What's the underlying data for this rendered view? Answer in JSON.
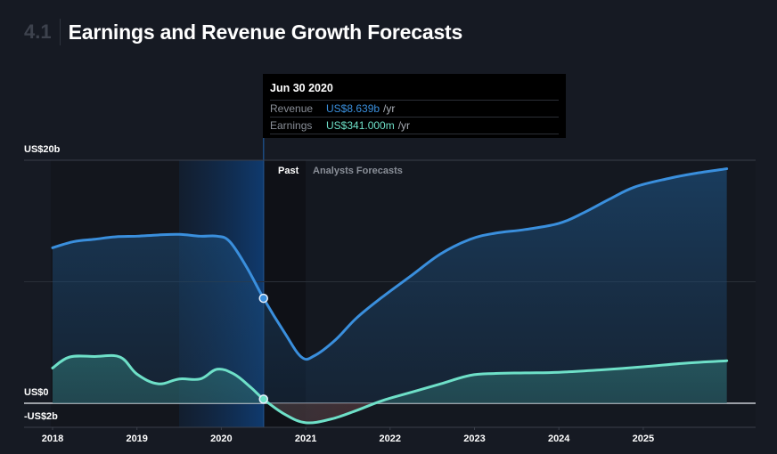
{
  "header": {
    "section_number": "4.1",
    "title": "Earnings and Revenue Growth Forecasts"
  },
  "tooltip": {
    "date": "Jun 30 2020",
    "rows": [
      {
        "label": "Revenue",
        "value": "US$8.639b",
        "unit": "/yr"
      },
      {
        "label": "Earnings",
        "value": "US$341.000m",
        "unit": "/yr"
      }
    ]
  },
  "regions": {
    "past_label": "Past",
    "forecast_label": "Analysts Forecasts"
  },
  "colors": {
    "background": "#161a23",
    "revenue": "#3a8fdd",
    "earnings": "#6ee0c8",
    "highlight": "#0f3a6a",
    "negative": "#5a1f24"
  },
  "chart_data": {
    "type": "area",
    "title": "Earnings and Revenue Growth Forecasts",
    "xlabel": "",
    "ylabel": "",
    "ylim": [
      -2,
      20
    ],
    "xlim": [
      2017.6,
      2026.5
    ],
    "y_tick_labels": [
      {
        "value": 20,
        "label": "US$20b"
      },
      {
        "value": 0,
        "label": "US$0"
      },
      {
        "value": -2,
        "label": "-US$2b"
      }
    ],
    "gridlines_y": [
      20,
      10,
      0
    ],
    "x_ticks": [
      2018,
      2019,
      2020,
      2021,
      2022,
      2023,
      2024,
      2025
    ],
    "x_tick_labels": [
      "2018",
      "2019",
      "2020",
      "2021",
      "2022",
      "2023",
      "2024",
      "2025"
    ],
    "past_end": 2020.5,
    "forecast_start": 2021.0,
    "highlight_range": [
      2019.5,
      2020.5
    ],
    "hover_x": 2020.5,
    "series": [
      {
        "name": "Revenue",
        "unit": "US$ billions",
        "points": [
          [
            2018.0,
            12.8
          ],
          [
            2018.25,
            13.3
          ],
          [
            2018.5,
            13.5
          ],
          [
            2018.75,
            13.7
          ],
          [
            2019.0,
            13.75
          ],
          [
            2019.25,
            13.85
          ],
          [
            2019.5,
            13.9
          ],
          [
            2019.75,
            13.75
          ],
          [
            2019.95,
            13.75
          ],
          [
            2020.1,
            13.3
          ],
          [
            2020.3,
            11.2
          ],
          [
            2020.5,
            8.64
          ],
          [
            2020.75,
            5.8
          ],
          [
            2020.95,
            3.8
          ],
          [
            2021.1,
            3.9
          ],
          [
            2021.35,
            5.2
          ],
          [
            2021.6,
            7.0
          ],
          [
            2021.9,
            8.7
          ],
          [
            2022.25,
            10.5
          ],
          [
            2022.6,
            12.3
          ],
          [
            2022.95,
            13.5
          ],
          [
            2023.25,
            14.0
          ],
          [
            2023.6,
            14.3
          ],
          [
            2024.0,
            14.8
          ],
          [
            2024.3,
            15.7
          ],
          [
            2024.6,
            16.8
          ],
          [
            2024.9,
            17.8
          ],
          [
            2025.3,
            18.5
          ],
          [
            2025.6,
            18.9
          ],
          [
            2025.99,
            19.3
          ]
        ]
      },
      {
        "name": "Earnings",
        "unit": "US$ billions",
        "points": [
          [
            2018.0,
            2.9
          ],
          [
            2018.2,
            3.8
          ],
          [
            2018.5,
            3.85
          ],
          [
            2018.8,
            3.8
          ],
          [
            2019.0,
            2.4
          ],
          [
            2019.25,
            1.6
          ],
          [
            2019.5,
            2.0
          ],
          [
            2019.75,
            2.0
          ],
          [
            2019.95,
            2.8
          ],
          [
            2020.15,
            2.4
          ],
          [
            2020.35,
            1.3
          ],
          [
            2020.5,
            0.34
          ],
          [
            2020.75,
            -0.9
          ],
          [
            2021.0,
            -1.6
          ],
          [
            2021.3,
            -1.3
          ],
          [
            2021.6,
            -0.6
          ],
          [
            2021.9,
            0.2
          ],
          [
            2022.25,
            0.9
          ],
          [
            2022.6,
            1.6
          ],
          [
            2022.95,
            2.3
          ],
          [
            2023.25,
            2.45
          ],
          [
            2023.6,
            2.5
          ],
          [
            2024.0,
            2.55
          ],
          [
            2024.5,
            2.75
          ],
          [
            2025.0,
            3.0
          ],
          [
            2025.5,
            3.3
          ],
          [
            2025.99,
            3.5
          ]
        ]
      }
    ]
  }
}
